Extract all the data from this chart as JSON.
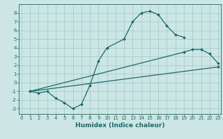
{
  "bg_color": "#cce5e5",
  "grid_color": "#aacccc",
  "line_color": "#1a6b6b",
  "line1_x": [
    1,
    2,
    3,
    4,
    5,
    6,
    7,
    8,
    9,
    10,
    12,
    13,
    14,
    15,
    16,
    17,
    18,
    19
  ],
  "line1_y": [
    -1,
    -1.2,
    -1,
    -1.8,
    -2.3,
    -3.0,
    -2.5,
    -0.3,
    2.5,
    4.0,
    5.0,
    7.0,
    8.0,
    8.2,
    7.8,
    6.5,
    5.5,
    5.2
  ],
  "line2_x": [
    1,
    23
  ],
  "line2_y": [
    -1,
    1.8
  ],
  "line3_x": [
    1,
    19,
    20,
    21,
    22,
    23
  ],
  "line3_y": [
    -1,
    3.5,
    3.8,
    3.8,
    3.3,
    2.2
  ],
  "xlim": [
    -0.3,
    23.3
  ],
  "ylim": [
    -3.6,
    9.0
  ],
  "yticks": [
    -3,
    -2,
    -1,
    0,
    1,
    2,
    3,
    4,
    5,
    6,
    7,
    8
  ],
  "xticks": [
    0,
    1,
    2,
    3,
    4,
    5,
    6,
    7,
    8,
    9,
    10,
    11,
    12,
    13,
    14,
    15,
    16,
    17,
    18,
    19,
    20,
    21,
    22,
    23
  ],
  "xlabel": "Humidex (Indice chaleur)",
  "xlabel_fontsize": 6.5,
  "tick_fontsize": 5.0,
  "marker": "D",
  "markersize": 2.0,
  "linewidth": 0.9
}
